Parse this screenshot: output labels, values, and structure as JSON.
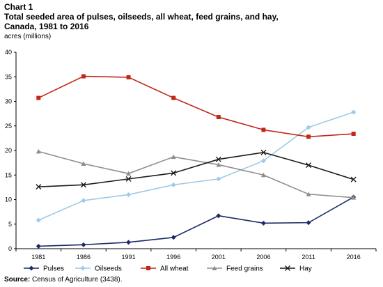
{
  "header": {
    "chart_number": "Chart 1",
    "title": "Total seeded area of pulses, oilseeds, all wheat, feed grains, and hay, Canada, 1981 to 2016",
    "y_unit": "acres (millions)"
  },
  "footer": {
    "source_label": "Source:",
    "source_text": "Census of Agriculture (3438)."
  },
  "chart_data": {
    "type": "line",
    "title": "Total seeded area of pulses, oilseeds, all wheat, feed grains, and hay, Canada, 1981 to 2016",
    "xlabel": "",
    "ylabel": "acres (millions)",
    "categories": [
      "1981",
      "1986",
      "1991",
      "1996",
      "2001",
      "2006",
      "2011",
      "2016"
    ],
    "ylim": [
      0,
      40
    ],
    "yticks": [
      0,
      5,
      10,
      15,
      20,
      25,
      30,
      35,
      40
    ],
    "grid": false,
    "legend_position": "bottom",
    "series": [
      {
        "name": "Pulses",
        "color": "#1a2a6c",
        "marker": "diamond",
        "values": [
          0.5,
          0.8,
          1.3,
          2.3,
          6.7,
          5.2,
          5.3,
          10.5
        ]
      },
      {
        "name": "Oilseeds",
        "color": "#9fc9e8",
        "marker": "diamond",
        "values": [
          5.8,
          9.8,
          11.0,
          13.0,
          14.2,
          17.9,
          24.7,
          27.8
        ]
      },
      {
        "name": "All wheat",
        "color": "#c0281a",
        "marker": "square",
        "values": [
          30.7,
          35.1,
          34.9,
          30.7,
          26.8,
          24.2,
          22.8,
          23.4
        ]
      },
      {
        "name": "Feed grains",
        "color": "#8e8e8e",
        "marker": "triangle",
        "values": [
          19.8,
          17.3,
          15.3,
          18.7,
          17.1,
          15.0,
          11.1,
          10.4
        ]
      },
      {
        "name": "Hay",
        "color": "#1c1c1c",
        "marker": "x",
        "values": [
          12.6,
          13.0,
          14.2,
          15.4,
          18.2,
          19.6,
          17.0,
          14.1
        ]
      }
    ]
  }
}
